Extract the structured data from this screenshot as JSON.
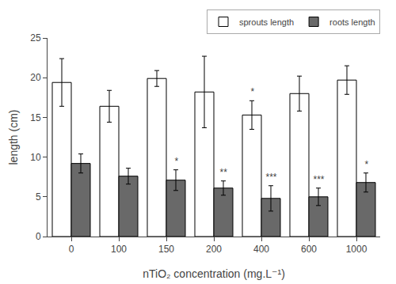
{
  "chart_data": {
    "type": "bar",
    "categories": [
      "0",
      "100",
      "150",
      "200",
      "400",
      "600",
      "1000"
    ],
    "series": [
      {
        "name": "sprouts length",
        "color": "#ffffff",
        "values": [
          19.4,
          16.4,
          19.9,
          18.2,
          15.3,
          18.0,
          19.7
        ],
        "errors": [
          3.0,
          2.0,
          1.0,
          4.5,
          1.8,
          2.2,
          1.8
        ],
        "significance": [
          null,
          null,
          null,
          null,
          "*",
          null,
          null
        ]
      },
      {
        "name": "roots length",
        "color": "#696969",
        "values": [
          9.2,
          7.6,
          7.1,
          6.1,
          4.8,
          5.0,
          6.8
        ],
        "errors": [
          1.2,
          1.0,
          1.3,
          0.9,
          1.6,
          1.1,
          1.2
        ],
        "significance": [
          null,
          null,
          "*",
          "**",
          "***",
          "***",
          "*"
        ]
      }
    ],
    "xlabel": "nTiO₂ concentration (mg.L⁻¹)",
    "ylabel": "length (cm)",
    "ylim": [
      0,
      25
    ],
    "yticks": [
      0,
      5,
      10,
      15,
      20,
      25
    ],
    "grid": false,
    "legend": "upper right"
  }
}
